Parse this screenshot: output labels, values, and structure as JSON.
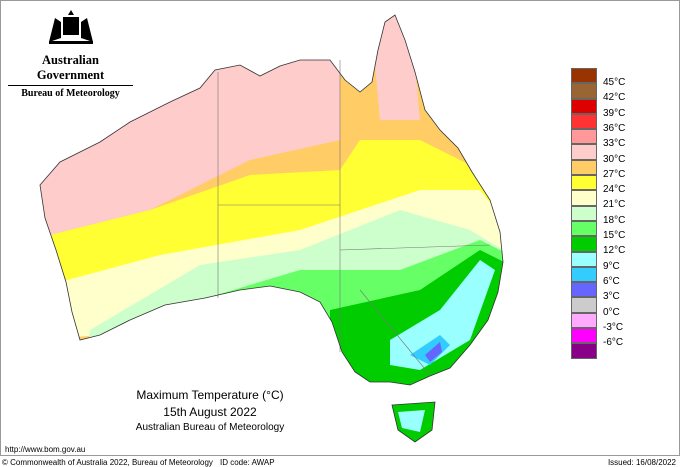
{
  "header": {
    "government": "Australian Government",
    "bureau": "Bureau of Meteorology",
    "logo_icon": "coat-of-arms-icon"
  },
  "legend": {
    "items": [
      {
        "color": "#993300",
        "label": "45°C"
      },
      {
        "color": "#996633",
        "label": "42°C"
      },
      {
        "color": "#dd0000",
        "label": "39°C"
      },
      {
        "color": "#ff3333",
        "label": "36°C"
      },
      {
        "color": "#ff9999",
        "label": "33°C"
      },
      {
        "color": "#ffcccc",
        "label": "30°C"
      },
      {
        "color": "#ffcc66",
        "label": "27°C"
      },
      {
        "color": "#ffff33",
        "label": "24°C"
      },
      {
        "color": "#ffffcc",
        "label": "21°C"
      },
      {
        "color": "#ccffcc",
        "label": "18°C"
      },
      {
        "color": "#66ff66",
        "label": "15°C"
      },
      {
        "color": "#00cc00",
        "label": "12°C"
      },
      {
        "color": "#99ffff",
        "label": "9°C"
      },
      {
        "color": "#33ccff",
        "label": "6°C"
      },
      {
        "color": "#6666ff",
        "label": "3°C"
      },
      {
        "color": "#cccccc",
        "label": "0°C"
      },
      {
        "color": "#ffaaff",
        "label": "-3°C"
      },
      {
        "color": "#ff00ff",
        "label": "-6°C"
      },
      {
        "color": "#880088",
        "label": ""
      }
    ]
  },
  "caption": {
    "title": "Maximum Temperature (°C)",
    "date": "15th August 2022",
    "source": "Australian Bureau of Meteorology"
  },
  "footer": {
    "url": "http://www.bom.gov.au",
    "copyright": "© Commonwealth of Australia 2022, Bureau of Meteorology",
    "id_code": "ID code: AWAP",
    "issued": "Issued: 16/08/2022"
  }
}
